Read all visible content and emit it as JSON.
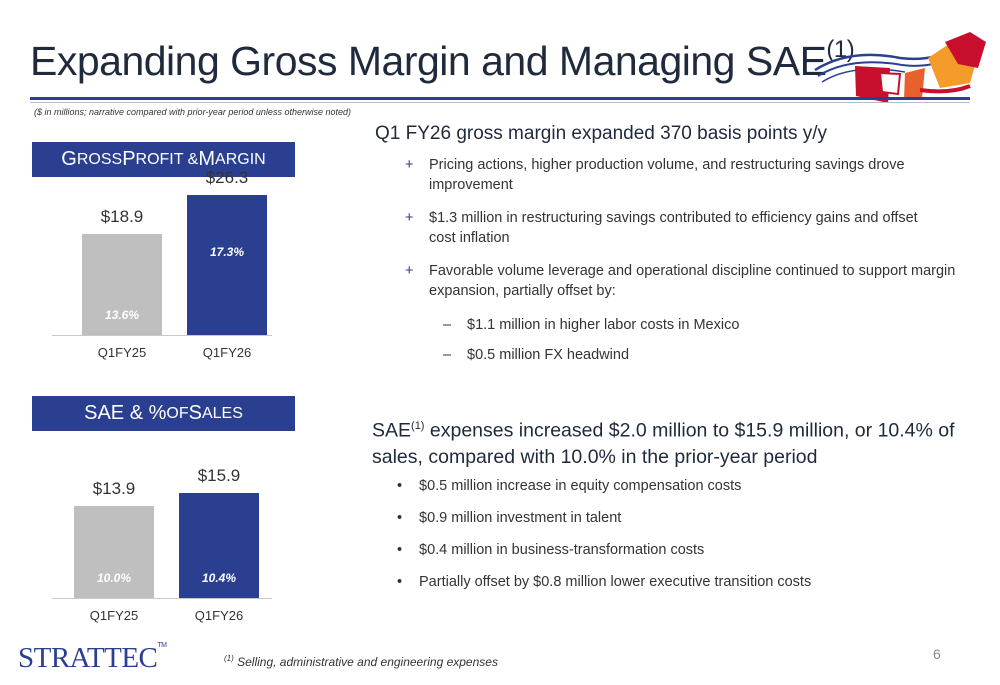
{
  "title": {
    "text": "Expanding Gross Margin and Managing SAE",
    "sup": "(1)"
  },
  "subnote": "($ in millions; narrative compared with prior-year period unless otherwise noted)",
  "gross_panel": {
    "title_first": "G",
    "title_rest": "ROSS ",
    "title_p": "P",
    "title_rest2": "ROFIT & ",
    "title_m": "M",
    "title_rest3": "ARGIN"
  },
  "sae_panel": {
    "title_main": "SAE & % ",
    "title_of": "OF ",
    "title_s": "S",
    "title_rest": "ALES"
  },
  "chart_data": [
    {
      "type": "bar",
      "title": "Gross Profit & Margin",
      "categories": [
        "Q1FY25",
        "Q1FY26"
      ],
      "values": [
        18.9,
        26.3
      ],
      "value_labels": [
        "$18.9",
        "$26.3"
      ],
      "pct_labels": [
        "13.6%",
        "17.3%"
      ],
      "colors": [
        "#bfbfbf",
        "#2a3f8f"
      ],
      "ylim": [
        0,
        30
      ]
    },
    {
      "type": "bar",
      "title": "SAE & % of Sales",
      "categories": [
        "Q1FY25",
        "Q1FY26"
      ],
      "values": [
        13.9,
        15.9
      ],
      "value_labels": [
        "$13.9",
        "$15.9"
      ],
      "pct_labels": [
        "10.0%",
        "10.4%"
      ],
      "colors": [
        "#bfbfbf",
        "#2a3f8f"
      ],
      "ylim": [
        0,
        18
      ]
    }
  ],
  "section1": {
    "heading": "Q1 FY26 gross margin expanded 370 basis points y/y",
    "bullets": [
      "Pricing actions, higher production volume, and restructuring savings drove improvement",
      "$1.3 million in restructuring savings contributed to efficiency gains and offset cost inflation",
      "Favorable volume leverage and operational discipline continued to support margin expansion, partially offset by:"
    ],
    "sub_bullets": [
      "$1.1 million in higher labor costs in Mexico",
      "$0.5 million FX headwind"
    ]
  },
  "section2": {
    "heading_a": "SAE",
    "heading_sup": "(1)",
    "heading_b": " expenses increased $2.0 million to $15.9 million, or 10.4% of sales, compared with 10.0% in the prior-year period",
    "bullets": [
      "$0.5 million increase in equity compensation costs",
      "$0.9 million investment in talent",
      "$0.4 million in business-transformation costs",
      "Partially offset by $0.8 million lower executive transition costs"
    ]
  },
  "footnote": {
    "sup": "(1)",
    "text": " Selling, administrative and engineering expenses"
  },
  "page_number": "6",
  "logo": {
    "text": "STRATTEC",
    "tm": "TM"
  },
  "markers": {
    "plus": "+",
    "dash": "–",
    "dot": "•"
  }
}
